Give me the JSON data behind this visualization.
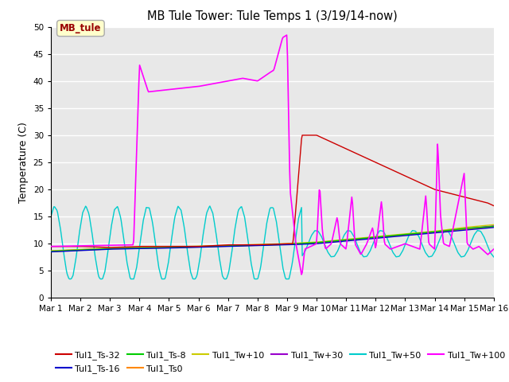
{
  "title": "MB Tule Tower: Tule Temps 1 (3/19/14-now)",
  "ylabel": "Temperature (C)",
  "xlim": [
    0,
    15
  ],
  "ylim": [
    0,
    50
  ],
  "yticks": [
    0,
    5,
    10,
    15,
    20,
    25,
    30,
    35,
    40,
    45,
    50
  ],
  "xtick_labels": [
    "Mar 1",
    "Mar 2",
    "Mar 3",
    "Mar 4",
    "Mar 5",
    "Mar 6",
    "Mar 7",
    "Mar 8",
    "Mar 9",
    "Mar 10",
    "Mar 11",
    "Mar 12",
    "Mar 13",
    "Mar 14",
    "Mar 15",
    "Mar 16"
  ],
  "xtick_positions": [
    0,
    1,
    2,
    3,
    4,
    5,
    6,
    7,
    8,
    9,
    10,
    11,
    12,
    13,
    14,
    15
  ],
  "bg_color": "#e8e8e8",
  "grid_color": "#ffffff",
  "annotation_text": "MB_tule",
  "series": {
    "Tul1_Ts-32": {
      "color": "#cc0000",
      "lw": 1.0
    },
    "Tul1_Ts-16": {
      "color": "#0000cc",
      "lw": 1.0
    },
    "Tul1_Ts-8": {
      "color": "#00cc00",
      "lw": 1.0
    },
    "Tul1_Ts0": {
      "color": "#ff8800",
      "lw": 1.0
    },
    "Tul1_Tw+10": {
      "color": "#cccc00",
      "lw": 1.0
    },
    "Tul1_Tw+30": {
      "color": "#9900cc",
      "lw": 1.0
    },
    "Tul1_Tw+50": {
      "color": "#00cccc",
      "lw": 1.0
    },
    "Tul1_Tw+100": {
      "color": "#ff00ff",
      "lw": 1.2
    }
  }
}
